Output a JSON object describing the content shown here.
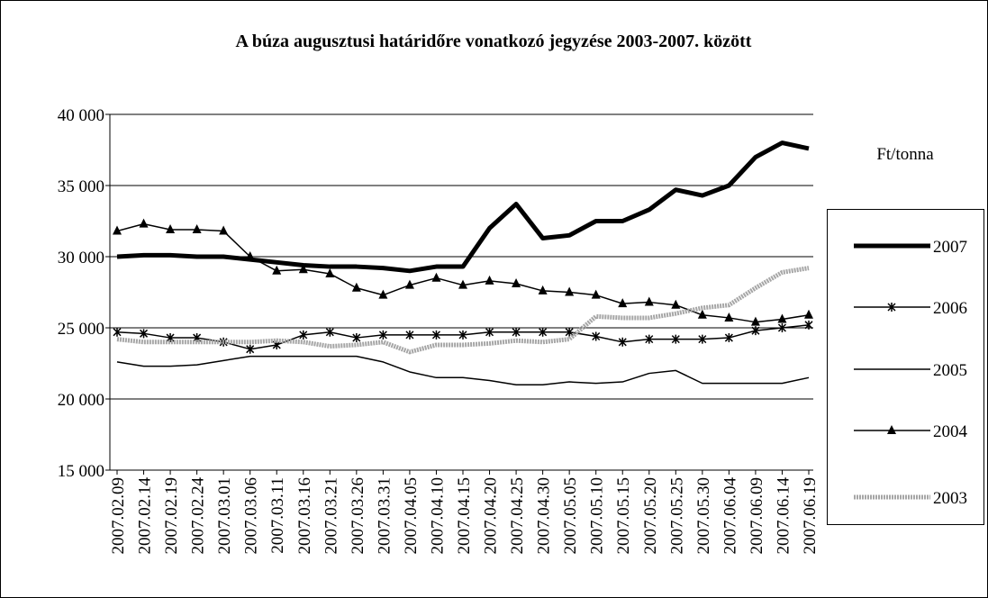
{
  "chart_data": {
    "type": "line",
    "title": "A búza augusztusi határidőre vonatkozó jegyzése 2003-2007. között",
    "y_label": "Ft/tonna",
    "categories": [
      "2007.02.09",
      "2007.02.14",
      "2007.02.19",
      "2007.02.24",
      "2007.03.01",
      "2007.03.06",
      "2007.03.11",
      "2007.03.16",
      "2007.03.21",
      "2007.03.26",
      "2007.03.31",
      "2007.04.05",
      "2007.04.10",
      "2007.04.15",
      "2007.04.20",
      "2007.04.25",
      "2007.04.30",
      "2007.05.05",
      "2007.05.10",
      "2007.05.15",
      "2007.05.20",
      "2007.05.25",
      "2007.05.30",
      "2007.06.04",
      "2007.06.09",
      "2007.06.14",
      "2007.06.19"
    ],
    "series": [
      {
        "name": "2007",
        "color": "#000000",
        "style": "thick",
        "values": [
          30000,
          30100,
          30100,
          30000,
          30000,
          29800,
          29600,
          29400,
          29300,
          29300,
          29200,
          29000,
          29300,
          29300,
          32000,
          33700,
          31300,
          31500,
          32500,
          32500,
          33300,
          34700,
          34300,
          35000,
          37000,
          38000,
          37600
        ]
      },
      {
        "name": "2006",
        "color": "#000000",
        "style": "asterisk",
        "values": [
          24700,
          24600,
          24300,
          24300,
          24000,
          23500,
          23800,
          24500,
          24700,
          24300,
          24500,
          24500,
          24500,
          24500,
          24700,
          24700,
          24700,
          24700,
          24400,
          24000,
          24200,
          24200,
          24200,
          24300,
          24800,
          25000,
          25200
        ]
      },
      {
        "name": "2005",
        "color": "#000000",
        "style": "thin",
        "values": [
          22600,
          22300,
          22300,
          22400,
          22700,
          23000,
          23000,
          23000,
          23000,
          23000,
          22600,
          21900,
          21500,
          21500,
          21300,
          21000,
          21000,
          21200,
          21100,
          21200,
          21800,
          22000,
          21100,
          21100,
          21100,
          21100,
          21500
        ]
      },
      {
        "name": "2004",
        "color": "#000000",
        "style": "triangle",
        "values": [
          31800,
          32300,
          31900,
          31900,
          31800,
          30000,
          29000,
          29100,
          28800,
          27800,
          27300,
          28000,
          28500,
          28000,
          28300,
          28100,
          27600,
          27500,
          27300,
          26700,
          26800,
          26600,
          25900,
          25700,
          25400,
          25600,
          25900
        ]
      },
      {
        "name": "2003",
        "color": "#a6a6a6",
        "style": "gray",
        "values": [
          24200,
          24000,
          24000,
          24000,
          24000,
          24000,
          24100,
          24000,
          23700,
          23800,
          24000,
          23300,
          23800,
          23800,
          23900,
          24100,
          24000,
          24200,
          25800,
          25700,
          25700,
          26000,
          26400,
          26600,
          27800,
          28900,
          29200
        ]
      }
    ],
    "ylim": [
      15000,
      40000
    ],
    "yticks": [
      {
        "value": 15000,
        "label": "15 000"
      },
      {
        "value": 20000,
        "label": "20 000"
      },
      {
        "value": 25000,
        "label": "25 000"
      },
      {
        "value": 30000,
        "label": "30 000"
      },
      {
        "value": 35000,
        "label": "35 000"
      },
      {
        "value": 40000,
        "label": "40 000"
      }
    ],
    "grid": true,
    "legend": "right"
  }
}
